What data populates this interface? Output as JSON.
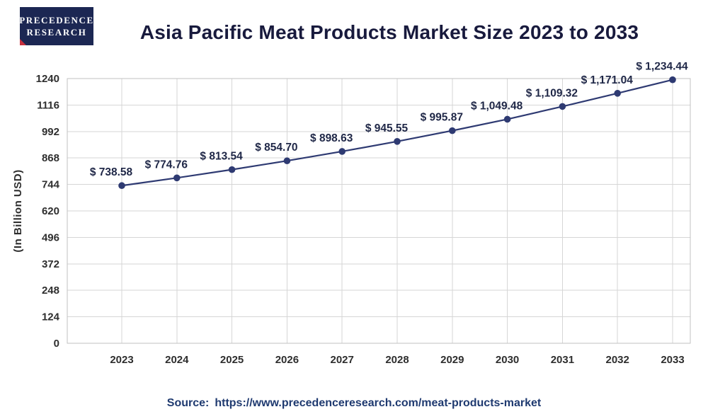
{
  "logo": {
    "line1": "PRECEDENCE",
    "line2": "RESEARCH"
  },
  "header": {
    "title": "Asia Pacific Meat Products Market Size 2023 to 2033"
  },
  "chart_data": {
    "type": "line",
    "title": "Asia Pacific Meat Products Market Size 2023 to 2033",
    "categories": [
      "2023",
      "2024",
      "2025",
      "2026",
      "2027",
      "2028",
      "2029",
      "2030",
      "2031",
      "2032",
      "2033"
    ],
    "values": [
      738.58,
      774.76,
      813.54,
      854.7,
      898.63,
      945.55,
      995.87,
      1049.48,
      1109.32,
      1171.04,
      1234.44
    ],
    "labels": [
      "$ 738.58",
      "$ 774.76",
      "$ 813.54",
      "$ 854.70",
      "$ 898.63",
      "$ 945.55",
      "$ 995.87",
      "$ 1,049.48",
      "$ 1,109.32",
      "$ 1,171.04",
      "$ 1,234.44"
    ],
    "xlabel": "",
    "ylabel": "(In Billion USD)",
    "yticks": [
      0,
      124,
      248,
      372,
      496,
      620,
      744,
      868,
      992,
      1116,
      1240
    ],
    "ylim": [
      0,
      1240
    ],
    "grid": true,
    "legend": false,
    "line_color": "#2e3a72",
    "marker_color": "#2e3a72",
    "label_color": "#1f2747",
    "grid_color": "#d6d6d6",
    "border_color": "#c2c2c2",
    "axis_text_color": "#2e2e2e"
  },
  "footer": {
    "source_prefix": "Source:",
    "source_url": "https://www.precedenceresearch.com/meat-products-market"
  }
}
